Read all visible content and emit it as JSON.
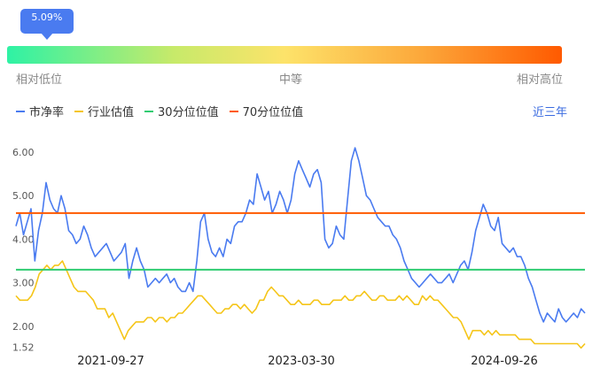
{
  "gauge": {
    "marker_label": "5.09%",
    "percentile": 0.0509,
    "low_label": "相对低位",
    "mid_label": "中等",
    "high_label": "相对高位"
  },
  "range_button": "近三年",
  "chart_data": {
    "type": "line",
    "y_tick_labels": [
      "6.00",
      "5.00",
      "4.00",
      "3.00",
      "2.00",
      "1.52"
    ],
    "yticks": [
      6.0,
      5.0,
      4.0,
      3.0,
      2.0,
      1.52
    ],
    "x_tick_labels": [
      "2021-09-27",
      "2023-03-30",
      "2024-09-26"
    ],
    "ylim": [
      1.52,
      6.5
    ],
    "grid": false,
    "legend_position": "top-left",
    "series": [
      {
        "name": "市净率",
        "color": "#4a7bf0",
        "values": [
          4.3,
          4.6,
          4.1,
          4.4,
          4.7,
          3.5,
          4.2,
          4.6,
          5.3,
          4.9,
          4.7,
          4.6,
          5.0,
          4.7,
          4.2,
          4.1,
          3.9,
          4.0,
          4.3,
          4.1,
          3.8,
          3.6,
          3.7,
          3.8,
          3.9,
          3.7,
          3.5,
          3.6,
          3.7,
          3.9,
          3.1,
          3.5,
          3.8,
          3.5,
          3.3,
          2.9,
          3.0,
          3.1,
          3.0,
          3.1,
          3.2,
          3.0,
          3.1,
          2.9,
          2.8,
          2.8,
          3.0,
          2.8,
          3.5,
          4.4,
          4.6,
          4.0,
          3.7,
          3.6,
          3.8,
          3.6,
          4.0,
          3.9,
          4.3,
          4.4,
          4.4,
          4.6,
          4.9,
          4.8,
          5.5,
          5.2,
          4.9,
          5.1,
          4.6,
          4.8,
          5.1,
          4.9,
          4.6,
          4.9,
          5.5,
          5.8,
          5.6,
          5.4,
          5.2,
          5.5,
          5.6,
          5.3,
          4.0,
          3.8,
          3.9,
          4.3,
          4.1,
          4.0,
          4.9,
          5.8,
          6.1,
          5.8,
          5.4,
          5.0,
          4.9,
          4.7,
          4.5,
          4.4,
          4.3,
          4.3,
          4.1,
          4.0,
          3.8,
          3.5,
          3.3,
          3.1,
          3.0,
          2.9,
          3.0,
          3.1,
          3.2,
          3.1,
          3.0,
          3.0,
          3.1,
          3.2,
          3.0,
          3.2,
          3.4,
          3.5,
          3.3,
          3.7,
          4.2,
          4.5,
          4.8,
          4.6,
          4.3,
          4.2,
          4.5,
          3.9,
          3.8,
          3.7,
          3.8,
          3.6,
          3.6,
          3.4,
          3.1,
          2.9,
          2.6,
          2.3,
          2.1,
          2.3,
          2.2,
          2.1,
          2.4,
          2.2,
          2.1,
          2.2,
          2.3,
          2.2,
          2.4,
          2.3
        ]
      },
      {
        "name": "行业估值",
        "color": "#f5c518",
        "values": [
          2.7,
          2.6,
          2.6,
          2.6,
          2.7,
          2.9,
          3.2,
          3.3,
          3.4,
          3.3,
          3.4,
          3.4,
          3.5,
          3.3,
          3.1,
          2.9,
          2.8,
          2.8,
          2.8,
          2.7,
          2.6,
          2.4,
          2.4,
          2.4,
          2.2,
          2.3,
          2.1,
          1.9,
          1.7,
          1.9,
          2.0,
          2.1,
          2.1,
          2.1,
          2.2,
          2.2,
          2.1,
          2.2,
          2.2,
          2.1,
          2.2,
          2.2,
          2.3,
          2.3,
          2.4,
          2.5,
          2.6,
          2.7,
          2.7,
          2.6,
          2.5,
          2.4,
          2.3,
          2.3,
          2.4,
          2.4,
          2.5,
          2.5,
          2.4,
          2.5,
          2.4,
          2.3,
          2.4,
          2.6,
          2.6,
          2.8,
          2.9,
          2.8,
          2.7,
          2.7,
          2.6,
          2.5,
          2.5,
          2.6,
          2.5,
          2.5,
          2.5,
          2.6,
          2.6,
          2.5,
          2.5,
          2.5,
          2.6,
          2.6,
          2.6,
          2.7,
          2.6,
          2.6,
          2.7,
          2.7,
          2.8,
          2.7,
          2.6,
          2.6,
          2.7,
          2.7,
          2.6,
          2.6,
          2.6,
          2.7,
          2.6,
          2.7,
          2.6,
          2.5,
          2.5,
          2.7,
          2.6,
          2.7,
          2.6,
          2.6,
          2.5,
          2.4,
          2.3,
          2.2,
          2.2,
          2.1,
          1.9,
          1.7,
          1.9,
          1.9,
          1.9,
          1.8,
          1.9,
          1.8,
          1.9,
          1.8,
          1.8,
          1.8,
          1.8,
          1.8,
          1.7,
          1.7,
          1.7,
          1.7,
          1.6,
          1.6,
          1.6,
          1.6,
          1.6,
          1.6,
          1.6,
          1.6,
          1.6,
          1.6,
          1.6,
          1.6,
          1.5,
          1.6
        ]
      },
      {
        "name": "30分位位值",
        "color": "#2ecc71",
        "values": [
          3.3
        ]
      },
      {
        "name": "70分位位值",
        "color": "#ff5a00",
        "values": [
          4.6
        ]
      }
    ]
  }
}
